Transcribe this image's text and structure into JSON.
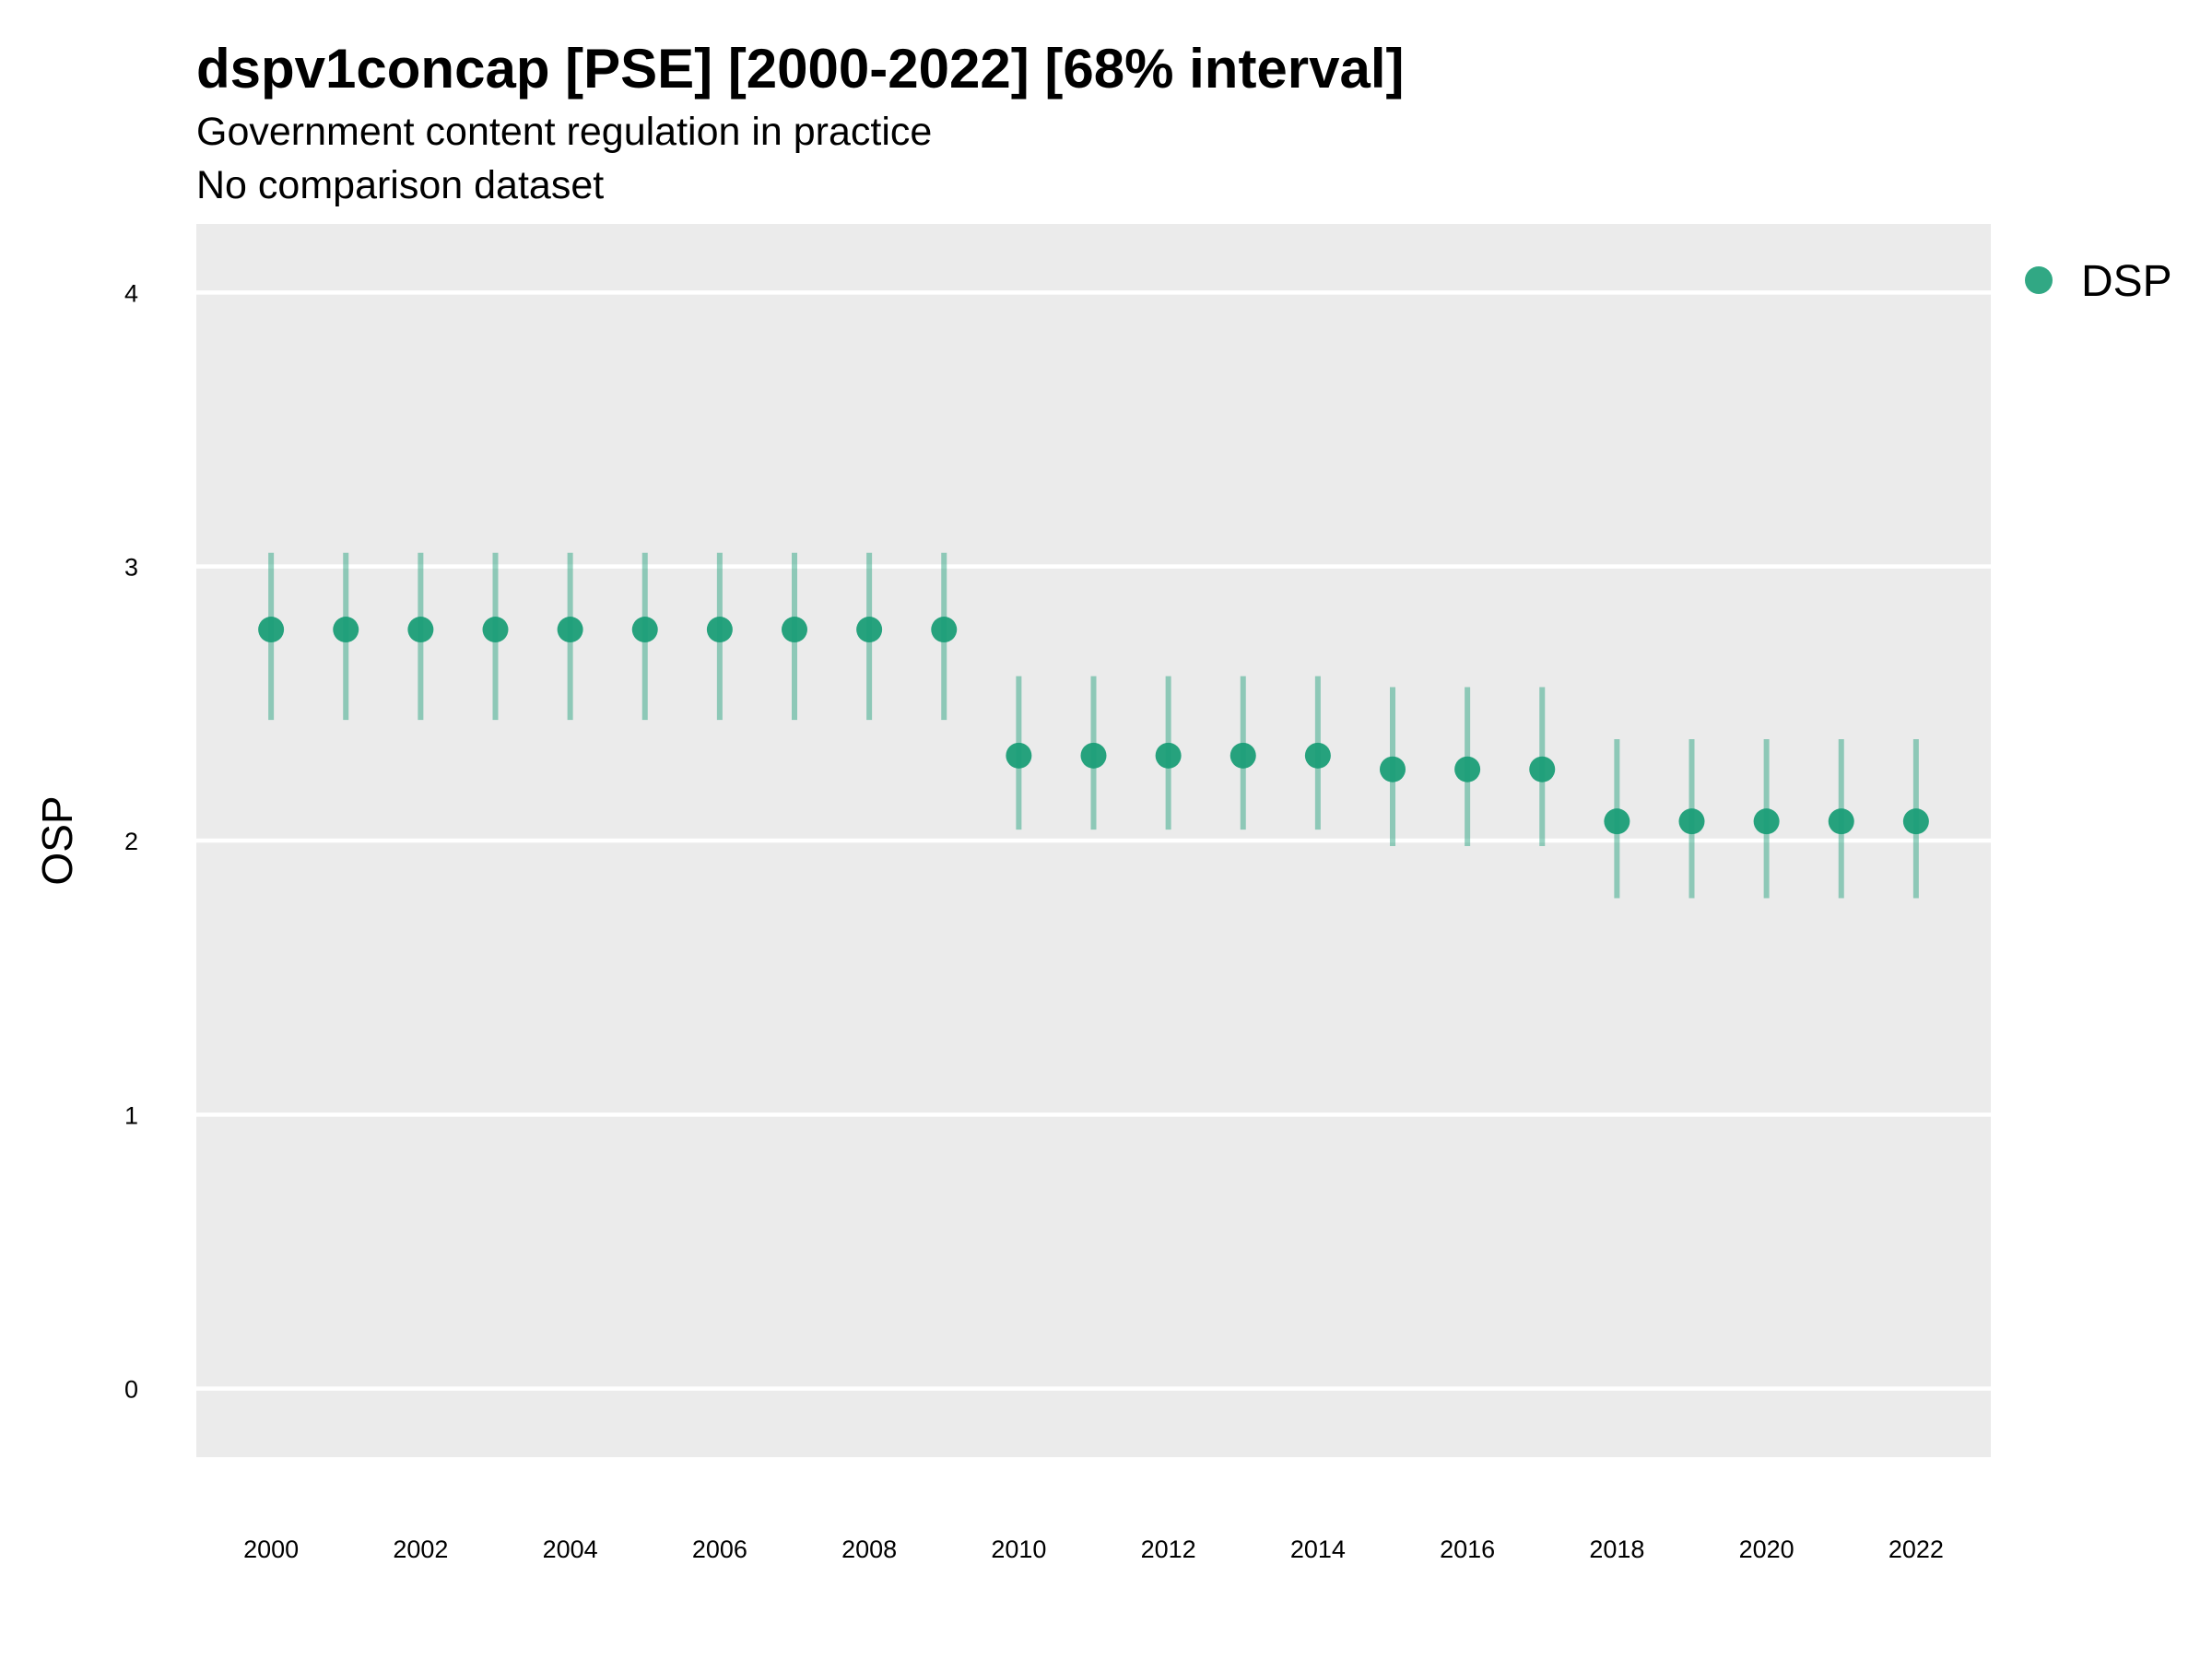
{
  "chart_data": {
    "type": "scatter",
    "title": "dspv1concap [PSE] [2000-2022] [68% interval]",
    "subtitle_lines": [
      "Government content regulation in practice",
      "No comparison dataset"
    ],
    "xlabel": "",
    "ylabel": "OSP",
    "x_ticks": [
      2000,
      2002,
      2004,
      2006,
      2008,
      2010,
      2012,
      2014,
      2016,
      2018,
      2020,
      2022
    ],
    "y_ticks": [
      0,
      1,
      2,
      3,
      4
    ],
    "xlim": [
      1999.0,
      2023.0
    ],
    "ylim": [
      -0.25,
      4.25
    ],
    "grid": true,
    "legend_position": "right",
    "series": [
      {
        "name": "DSP",
        "color": "#1b9e77",
        "points": [
          {
            "x": 2000,
            "y": 2.77,
            "lo": 2.44,
            "hi": 3.05
          },
          {
            "x": 2001,
            "y": 2.77,
            "lo": 2.44,
            "hi": 3.05
          },
          {
            "x": 2002,
            "y": 2.77,
            "lo": 2.44,
            "hi": 3.05
          },
          {
            "x": 2003,
            "y": 2.77,
            "lo": 2.44,
            "hi": 3.05
          },
          {
            "x": 2004,
            "y": 2.77,
            "lo": 2.44,
            "hi": 3.05
          },
          {
            "x": 2005,
            "y": 2.77,
            "lo": 2.44,
            "hi": 3.05
          },
          {
            "x": 2006,
            "y": 2.77,
            "lo": 2.44,
            "hi": 3.05
          },
          {
            "x": 2007,
            "y": 2.77,
            "lo": 2.44,
            "hi": 3.05
          },
          {
            "x": 2008,
            "y": 2.77,
            "lo": 2.44,
            "hi": 3.05
          },
          {
            "x": 2009,
            "y": 2.77,
            "lo": 2.44,
            "hi": 3.05
          },
          {
            "x": 2010,
            "y": 2.31,
            "lo": 2.04,
            "hi": 2.6
          },
          {
            "x": 2011,
            "y": 2.31,
            "lo": 2.04,
            "hi": 2.6
          },
          {
            "x": 2012,
            "y": 2.31,
            "lo": 2.04,
            "hi": 2.6
          },
          {
            "x": 2013,
            "y": 2.31,
            "lo": 2.04,
            "hi": 2.6
          },
          {
            "x": 2014,
            "y": 2.31,
            "lo": 2.04,
            "hi": 2.6
          },
          {
            "x": 2015,
            "y": 2.26,
            "lo": 1.98,
            "hi": 2.56
          },
          {
            "x": 2016,
            "y": 2.26,
            "lo": 1.98,
            "hi": 2.56
          },
          {
            "x": 2017,
            "y": 2.26,
            "lo": 1.98,
            "hi": 2.56
          },
          {
            "x": 2018,
            "y": 2.07,
            "lo": 1.79,
            "hi": 2.37
          },
          {
            "x": 2019,
            "y": 2.07,
            "lo": 1.79,
            "hi": 2.37
          },
          {
            "x": 2020,
            "y": 2.07,
            "lo": 1.79,
            "hi": 2.37
          },
          {
            "x": 2021,
            "y": 2.07,
            "lo": 1.79,
            "hi": 2.37
          },
          {
            "x": 2022,
            "y": 2.07,
            "lo": 1.79,
            "hi": 2.37
          }
        ]
      }
    ]
  }
}
